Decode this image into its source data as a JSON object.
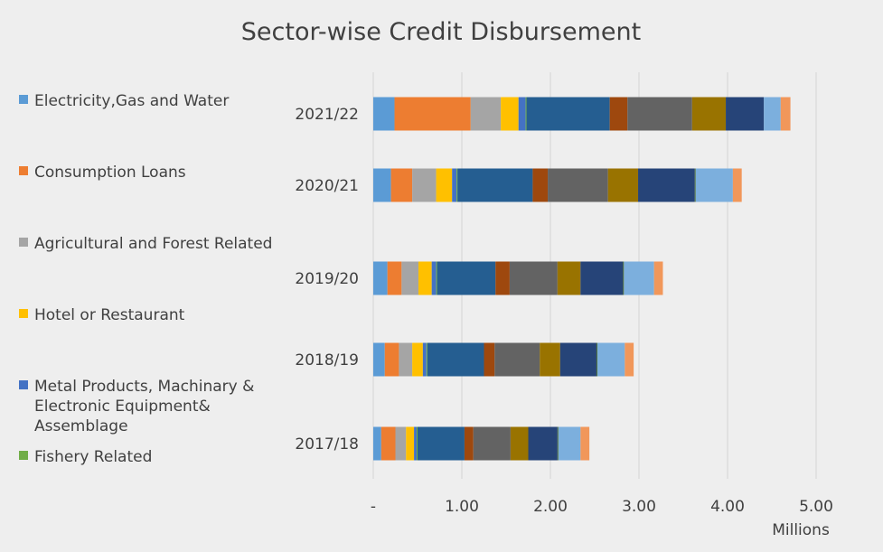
{
  "chart_data": {
    "type": "bar",
    "orientation": "horizontal",
    "stacked": true,
    "title": "Sector-wise Credit Disbursement",
    "unit_label": "Millions",
    "xlim": [
      0,
      5
    ],
    "x_ticks": [
      0,
      1,
      2,
      3,
      4,
      5
    ],
    "x_tick_labels": [
      "-",
      "1.00",
      "2.00",
      "3.00",
      "4.00",
      "5.00"
    ],
    "grid": true,
    "legend_position": "left",
    "categories": [
      "2021/22",
      "2020/21",
      "2019/20",
      "2018/19",
      "2017/18"
    ],
    "series": [
      {
        "name": "Electricity,Gas and Water",
        "color": "#5B9BD5",
        "values": [
          0.24,
          0.2,
          0.16,
          0.13,
          0.09
        ]
      },
      {
        "name": "Consumption Loans",
        "color": "#ED7D31",
        "values": [
          0.86,
          0.24,
          0.16,
          0.16,
          0.16
        ]
      },
      {
        "name": "Agricultural and Forest Related",
        "color": "#A5A5A5",
        "values": [
          0.34,
          0.27,
          0.19,
          0.15,
          0.12
        ]
      },
      {
        "name": "Hotel or Restaurant",
        "color": "#FFC000",
        "values": [
          0.2,
          0.18,
          0.15,
          0.12,
          0.09
        ]
      },
      {
        "name": "Metal Products, Machinary & Electronic Equipment& Assemblage",
        "color": "#4472C4",
        "values": [
          0.08,
          0.05,
          0.05,
          0.04,
          0.03
        ]
      },
      {
        "name": "Fishery Related",
        "color": "#70AD47",
        "values": [
          0.01,
          0.01,
          0.01,
          0.01,
          0.01
        ]
      },
      {
        "name": "",
        "color": "#255E91",
        "values": [
          0.94,
          0.85,
          0.66,
          0.64,
          0.53
        ]
      },
      {
        "name": "",
        "color": "#9E480E",
        "values": [
          0.2,
          0.17,
          0.16,
          0.12,
          0.1
        ]
      },
      {
        "name": "",
        "color": "#636363",
        "values": [
          0.73,
          0.68,
          0.54,
          0.51,
          0.42
        ]
      },
      {
        "name": "",
        "color": "#997300",
        "values": [
          0.38,
          0.34,
          0.26,
          0.23,
          0.2
        ]
      },
      {
        "name": "",
        "color": "#264478",
        "values": [
          0.43,
          0.64,
          0.48,
          0.41,
          0.33
        ]
      },
      {
        "name": "",
        "color": "#43682B",
        "values": [
          0.0,
          0.01,
          0.01,
          0.01,
          0.01
        ]
      },
      {
        "name": "",
        "color": "#7CAFDD",
        "values": [
          0.19,
          0.42,
          0.34,
          0.31,
          0.25
        ]
      },
      {
        "name": "",
        "color": "#F1975A",
        "values": [
          0.11,
          0.1,
          0.1,
          0.1,
          0.1
        ]
      }
    ]
  }
}
